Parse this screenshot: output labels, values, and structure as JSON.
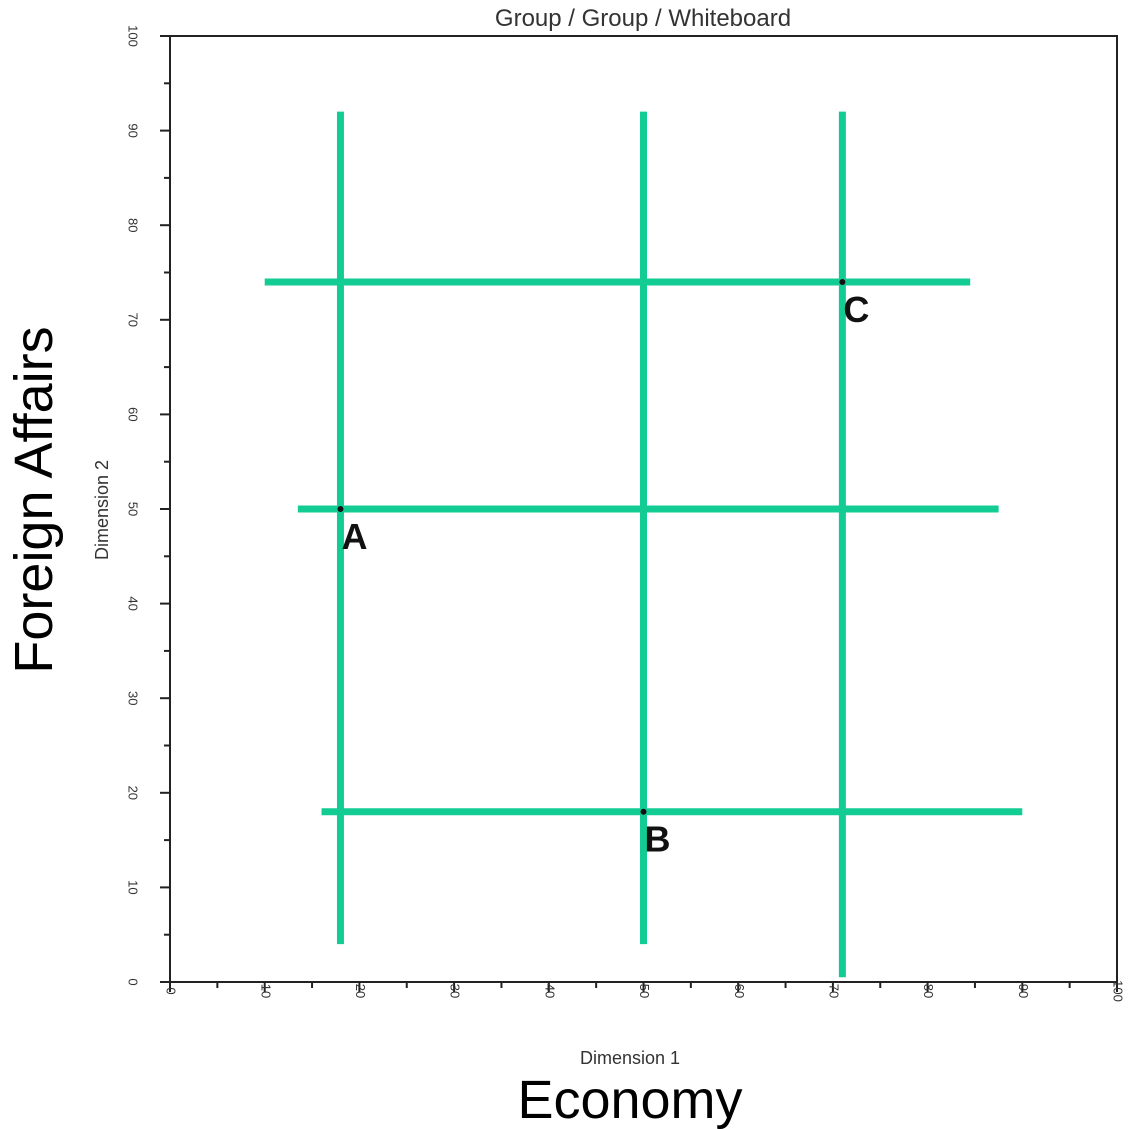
{
  "chart_data": {
    "type": "scatter",
    "title": "Group / Group / Whiteboard",
    "xlabel": "Dimension 1",
    "ylabel": "Dimension 2",
    "xlabel_overlay": "Economy",
    "ylabel_overlay": "Foreign Affairs",
    "xlim": [
      0,
      100
    ],
    "ylim": [
      0,
      100
    ],
    "x_ticks": [
      0,
      10,
      20,
      30,
      40,
      50,
      60,
      70,
      80,
      90,
      100
    ],
    "y_ticks": [
      0,
      10,
      20,
      30,
      40,
      50,
      60,
      70,
      80,
      90,
      100
    ],
    "grid": false,
    "points": [
      {
        "label": "A",
        "x": 18,
        "y": 50
      },
      {
        "label": "B",
        "x": 50,
        "y": 18
      },
      {
        "label": "C",
        "x": 71,
        "y": 74
      }
    ],
    "overlay_lines": {
      "color": "#12cc94",
      "vertical": [
        {
          "x": 18,
          "y_from": 4,
          "y_to": 92
        },
        {
          "x": 50,
          "y_from": 4,
          "y_to": 92
        },
        {
          "x": 71,
          "y_from": 0.5,
          "y_to": 92
        }
      ],
      "horizontal": [
        {
          "y": 74,
          "x_from": 10,
          "x_to": 84.5
        },
        {
          "y": 50,
          "x_from": 13.5,
          "x_to": 87.5
        },
        {
          "y": 18,
          "x_from": 16,
          "x_to": 90
        }
      ]
    }
  }
}
